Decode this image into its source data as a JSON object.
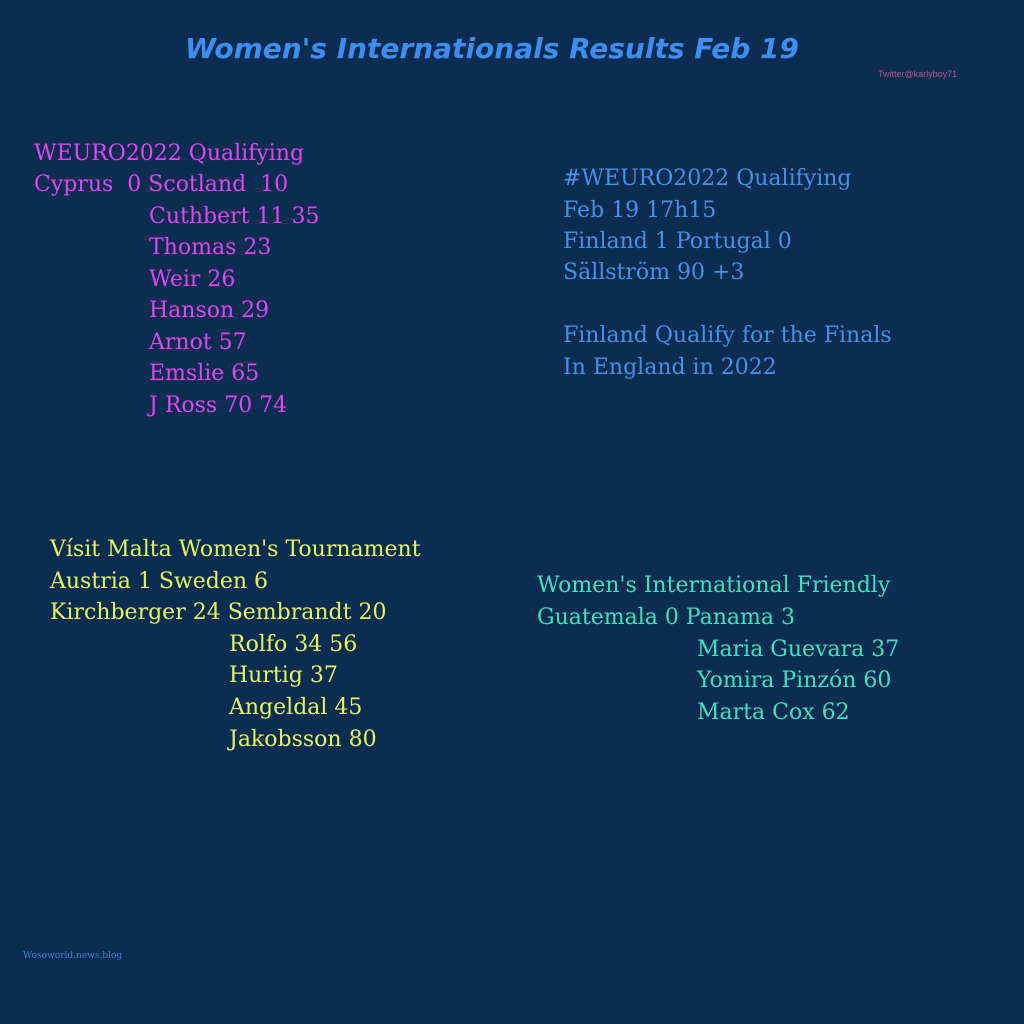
{
  "title": "Women's Internationals Results Feb 19",
  "handle": "Twitter@karlyboy71",
  "footer": "Wosoworld.news.blog",
  "colors": {
    "background": "#0c2d52",
    "title": "#3d8ef0",
    "block1": "#e046f0",
    "block2": "#4a8ee6",
    "block3": "#e6f45a",
    "block4": "#3fe0bf"
  },
  "blocks": [
    {
      "lines": [
        "WEURO2022 Qualifying",
        "Cyprus  0 Scotland  10"
      ],
      "scorers": [
        "Cuthbert 11 35",
        "Thomas 23",
        "Weir 26",
        "Hanson 29",
        "Arnot 57",
        "Emslie 65",
        "J Ross 70 74"
      ]
    },
    {
      "lines": [
        "#WEURO2022 Qualifying",
        "Feb 19 17h15",
        "Finland 1 Portugal 0",
        "Sällström 90 +3",
        "Finland Qualify for the Finals",
        "In England in 2022"
      ]
    },
    {
      "lines": [
        "Vísit Malta Women's Tournament",
        "Austria 1 Sweden 6",
        "Kirchberger 24 Sembrandt 20"
      ],
      "scorers": [
        "Rolfo 34 56",
        "Hurtig 37",
        "Angeldal 45",
        "Jakobsson 80"
      ]
    },
    {
      "lines": [
        "Women's International Friendly",
        "Guatemala 0 Panama 3"
      ],
      "scorers": [
        "Maria Guevara 37",
        "Yomira Pinzón 60",
        "Marta Cox 62"
      ]
    }
  ]
}
